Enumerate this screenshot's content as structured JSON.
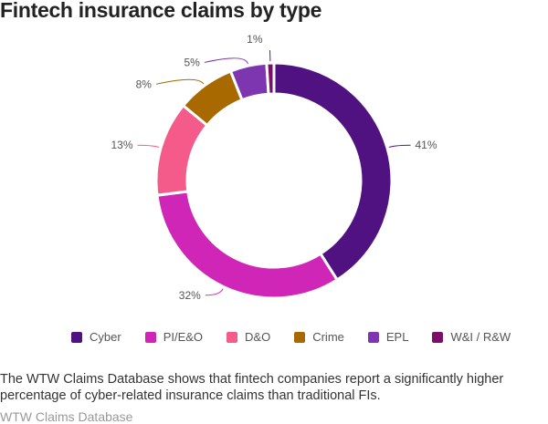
{
  "title": "Fintech insurance claims by type",
  "chart_data": {
    "type": "pie",
    "donut": true,
    "categories": [
      "Cyber",
      "PI/E&O",
      "D&O",
      "Crime",
      "EPL",
      "W&I / R&W"
    ],
    "values": [
      41,
      32,
      13,
      8,
      5,
      1
    ],
    "labels": [
      "41%",
      "32%",
      "13%",
      "8%",
      "5%",
      "1%"
    ],
    "colors": [
      "#4f1280",
      "#d026b8",
      "#f45a8a",
      "#a86a00",
      "#7d36b0",
      "#7a0f6a"
    ],
    "legend_position": "bottom"
  },
  "note": "The WTW Claims Database shows that fintech companies report a significantly higher percentage of cyber-related insurance claims than traditional FIs.",
  "source": "WTW Claims Database"
}
